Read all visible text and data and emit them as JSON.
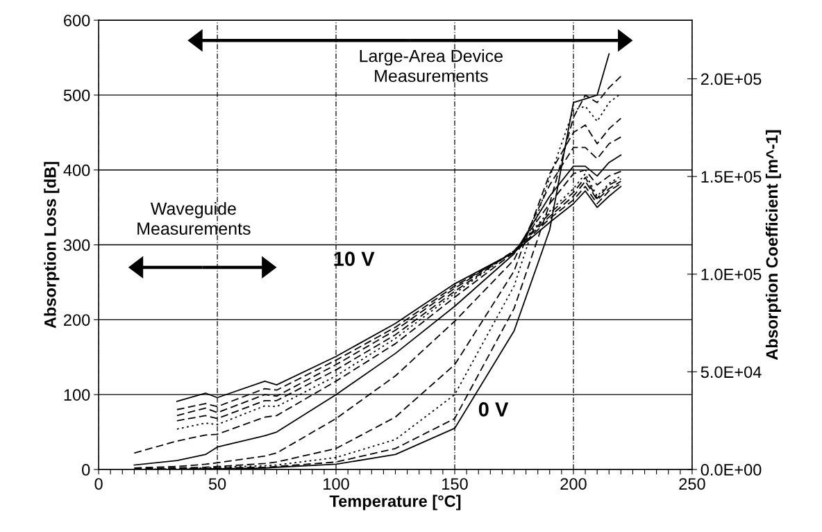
{
  "chart_data": {
    "type": "line",
    "xlabel": "Temperature [°C]",
    "ylabel": "Absorption Loss [dB]",
    "y2label": "Absorption Coefficient [m^-1]",
    "annotations": [
      "Large-Area Device\nMeasurements",
      "Waveguide\nMeasurements",
      "10 V",
      "0 V"
    ],
    "x": [
      15,
      33,
      45,
      50,
      70,
      75,
      100,
      125,
      150,
      175,
      190,
      200,
      205,
      210,
      215,
      220
    ],
    "series": [
      {
        "color": "#000000",
        "line_style": "solid",
        "values": [
          null,
          91,
          102,
          96,
          118,
          113,
          151,
          195,
          248,
          290,
          330,
          355,
          372,
          350,
          365,
          378
        ]
      },
      {
        "color": "#000000",
        "line_style": "dashed",
        "values": [
          null,
          80,
          88,
          84,
          108,
          106,
          146,
          190,
          245,
          290,
          335,
          360,
          378,
          355,
          372,
          382
        ]
      },
      {
        "color": "#000000",
        "line_style": "dashed",
        "values": [
          null,
          72,
          82,
          76,
          100,
          98,
          140,
          186,
          242,
          292,
          338,
          365,
          385,
          360,
          375,
          385
        ]
      },
      {
        "color": "#000000",
        "line_style": "dashed",
        "values": [
          null,
          65,
          72,
          68,
          92,
          92,
          133,
          180,
          238,
          292,
          342,
          370,
          390,
          362,
          380,
          388
        ]
      },
      {
        "color": "#000000",
        "line_style": "dotted",
        "values": [
          null,
          54,
          62,
          60,
          85,
          84,
          125,
          175,
          235,
          292,
          345,
          375,
          395,
          365,
          382,
          392
        ]
      },
      {
        "color": "#000000",
        "line_style": "dashed",
        "values": [
          22,
          38,
          46,
          47,
          70,
          72,
          118,
          168,
          230,
          290,
          355,
          395,
          400,
          380,
          392,
          398
        ]
      },
      {
        "color": "#000000",
        "line_style": "solid",
        "values": [
          6,
          12,
          20,
          30,
          45,
          50,
          100,
          155,
          218,
          288,
          365,
          405,
          405,
          392,
          410,
          420
        ]
      },
      {
        "color": "#000000",
        "line_style": "dashed",
        "values": [
          2,
          4,
          7,
          9,
          18,
          22,
          68,
          125,
          198,
          280,
          380,
          430,
          430,
          415,
          435,
          444
        ]
      },
      {
        "color": "#000000",
        "line_style": "dashed",
        "values": [
          1,
          2,
          3,
          4,
          8,
          10,
          28,
          70,
          140,
          265,
          395,
          450,
          460,
          435,
          455,
          469
        ]
      },
      {
        "color": "#000000",
        "line_style": "dotted",
        "values": [
          0,
          1,
          2,
          3,
          5,
          6,
          16,
          40,
          100,
          245,
          390,
          480,
          485,
          465,
          490,
          502
        ]
      },
      {
        "color": "#000000",
        "line_style": "dashed",
        "values": [
          0,
          1,
          1,
          2,
          3,
          4,
          10,
          28,
          68,
          215,
          355,
          470,
          500,
          490,
          510,
          525
        ]
      },
      {
        "color": "#000000",
        "line_style": "solid",
        "values": [
          0,
          0,
          1,
          1,
          2,
          3,
          7,
          20,
          55,
          185,
          320,
          490,
          495,
          500,
          555,
          null
        ]
      }
    ],
    "xlim": [
      0,
      250
    ],
    "xticks": [
      0,
      {
        "value": 5,
        "label": null
      },
      {
        "value": 10,
        "label": null
      },
      {
        "value": 15,
        "label": null
      },
      {
        "value": 20,
        "label": null
      },
      {
        "value": 25,
        "label": null
      },
      {
        "value": 30,
        "label": null
      },
      {
        "value": 35,
        "label": null
      },
      {
        "value": 40,
        "label": null
      },
      {
        "value": 45,
        "label": null
      },
      50,
      {
        "value": 55,
        "label": null
      },
      {
        "value": 60,
        "label": null
      },
      {
        "value": 65,
        "label": null
      },
      {
        "value": 70,
        "label": null
      },
      {
        "value": 75,
        "label": null
      },
      {
        "value": 80,
        "label": null
      },
      {
        "value": 85,
        "label": null
      },
      {
        "value": 90,
        "label": null
      },
      {
        "value": 95,
        "label": null
      },
      100,
      {
        "value": 105,
        "label": null
      },
      {
        "value": 110,
        "label": null
      },
      {
        "value": 115,
        "label": null
      },
      {
        "value": 120,
        "label": null
      },
      {
        "value": 125,
        "label": null
      },
      {
        "value": 130,
        "label": null
      },
      {
        "value": 135,
        "label": null
      },
      {
        "value": 140,
        "label": null
      },
      {
        "value": 145,
        "label": null
      },
      150,
      {
        "value": 155,
        "label": null
      },
      {
        "value": 160,
        "label": null
      },
      {
        "value": 165,
        "label": null
      },
      {
        "value": 170,
        "label": null
      },
      {
        "value": 175,
        "label": null
      },
      {
        "value": 180,
        "label": null
      },
      {
        "value": 185,
        "label": null
      },
      {
        "value": 190,
        "label": null
      },
      {
        "value": 195,
        "label": null
      },
      200,
      {
        "value": 205,
        "label": null
      },
      {
        "value": 210,
        "label": null
      },
      {
        "value": 215,
        "label": null
      },
      {
        "value": 220,
        "label": null
      },
      {
        "value": 225,
        "label": null
      },
      {
        "value": 230,
        "label": null
      },
      {
        "value": 235,
        "label": null
      },
      {
        "value": 240,
        "label": null
      },
      {
        "value": 245,
        "label": null
      },
      250
    ],
    "ylim": [
      0,
      600
    ],
    "yticks": [
      0,
      100,
      200,
      300,
      400,
      500,
      600
    ],
    "y2lim": [
      0,
      230000
    ],
    "y2ticks": [
      {
        "value": 0,
        "label": "0.0E+00"
      },
      {
        "value": 50000,
        "label": "5.0E+04"
      },
      {
        "value": 100000,
        "label": "1.0E+05"
      },
      {
        "value": 150000,
        "label": "1.5E+05"
      },
      {
        "value": 200000,
        "label": "2.0E+05"
      }
    ],
    "grid": true,
    "legend": false
  }
}
